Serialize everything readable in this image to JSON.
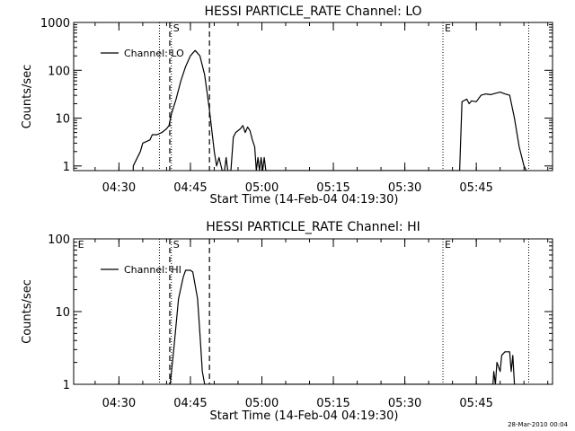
{
  "chart_data": [
    {
      "type": "line",
      "title": "HESSI PARTICLE_RATE Channel: LO",
      "xlabel": "Start Time (14-Feb-04 04:19:30)",
      "ylabel": "Counts/sec",
      "y_scale": "log",
      "xlim": [
        "04:20:30",
        "06:01:00"
      ],
      "ylim": [
        0.8,
        1000
      ],
      "x_ticks": [
        "04:30",
        "04:45",
        "05:00",
        "05:15",
        "05:30",
        "05:45"
      ],
      "y_ticks": [
        {
          "value": 1,
          "label": "1"
        },
        {
          "value": 10,
          "label": "10"
        },
        {
          "value": 100,
          "label": "100"
        },
        {
          "value": 1000,
          "label": "1000"
        }
      ],
      "legend": {
        "label": "Channel: LO",
        "position": "top-left"
      },
      "markers": [
        {
          "label": "S",
          "x": "04:41:00",
          "style": "dotted"
        },
        {
          "label": "E",
          "x": "05:38:00",
          "style": "dotted"
        }
      ],
      "bounds": [
        {
          "x": "04:38:30",
          "style": "dotted"
        },
        {
          "x": "04:40:40",
          "style": "dashed"
        },
        {
          "x": "04:49:00",
          "style": "dashed"
        },
        {
          "x": "05:56:00",
          "style": "dotted"
        }
      ],
      "series": [
        {
          "name": "Channel: LO",
          "points": [
            [
              "04:33:00",
              0.8
            ],
            [
              "04:33:00",
              1.0
            ],
            [
              "04:34:30",
              2.0
            ],
            [
              "04:35:00",
              3.0
            ],
            [
              "04:36:30",
              3.5
            ],
            [
              "04:37:00",
              4.5
            ],
            [
              "04:38:00",
              4.5
            ],
            [
              "04:39:00",
              5.0
            ],
            [
              "04:40:00",
              6.0
            ],
            [
              "04:40:30",
              7.0
            ],
            [
              "04:41:00",
              12.0
            ],
            [
              "04:42:00",
              25.0
            ],
            [
              "04:43:00",
              60.0
            ],
            [
              "04:44:00",
              120.0
            ],
            [
              "04:45:00",
              200.0
            ],
            [
              "04:46:00",
              260.0
            ],
            [
              "04:47:00",
              200.0
            ],
            [
              "04:48:00",
              80.0
            ],
            [
              "04:49:00",
              15.0
            ],
            [
              "04:50:00",
              2.0
            ],
            [
              "04:50:30",
              1.0
            ],
            [
              "04:51:00",
              1.5
            ],
            [
              "04:51:40",
              0.8
            ],
            [
              "04:52:10",
              0.8
            ],
            [
              "04:52:30",
              1.5
            ],
            [
              "04:52:50",
              0.8
            ],
            [
              "04:53:30",
              0.8
            ],
            [
              "04:54:00",
              4.0
            ],
            [
              "04:54:30",
              5.0
            ],
            [
              "04:55:30",
              6.0
            ],
            [
              "04:56:00",
              7.0
            ],
            [
              "04:56:30",
              5.0
            ],
            [
              "04:57:00",
              6.5
            ],
            [
              "04:57:30",
              5.5
            ],
            [
              "04:58:00",
              3.5
            ],
            [
              "04:58:30",
              2.5
            ],
            [
              "04:58:50",
              0.8
            ],
            [
              "04:59:10",
              1.5
            ],
            [
              "04:59:30",
              0.8
            ],
            [
              "04:59:50",
              1.5
            ],
            [
              "05:00:10",
              0.8
            ],
            [
              "05:00:30",
              1.5
            ],
            [
              "05:00:50",
              0.8
            ],
            [
              "05:41:30",
              0.8
            ],
            [
              "05:42:00",
              22.0
            ],
            [
              "05:43:00",
              25.0
            ],
            [
              "05:43:30",
              20.0
            ],
            [
              "05:44:00",
              23.0
            ],
            [
              "05:45:00",
              22.0
            ],
            [
              "05:46:00",
              30.0
            ],
            [
              "05:47:00",
              32.0
            ],
            [
              "05:48:00",
              31.0
            ],
            [
              "05:49:00",
              33.0
            ],
            [
              "05:50:00",
              35.0
            ],
            [
              "05:51:00",
              32.0
            ],
            [
              "05:52:00",
              30.0
            ],
            [
              "05:53:00",
              10.0
            ],
            [
              "05:54:00",
              2.5
            ],
            [
              "05:55:00",
              1.0
            ],
            [
              "05:55:30",
              0.8
            ]
          ]
        }
      ]
    },
    {
      "type": "line",
      "title": "HESSI PARTICLE_RATE Channel: HI",
      "xlabel": "Start Time (14-Feb-04 04:19:30)",
      "ylabel": "Counts/sec",
      "y_scale": "log",
      "xlim": [
        "04:20:30",
        "06:01:00"
      ],
      "ylim": [
        1,
        100
      ],
      "x_ticks": [
        "04:30",
        "04:45",
        "05:00",
        "05:15",
        "05:30",
        "05:45"
      ],
      "y_ticks": [
        {
          "value": 1,
          "label": "1"
        },
        {
          "value": 10,
          "label": "10"
        },
        {
          "value": 100,
          "label": "100"
        }
      ],
      "legend": {
        "label": "Channel: HI",
        "position": "top-left"
      },
      "markers": [
        {
          "label": "E",
          "x": "04:21:00",
          "style": "none"
        },
        {
          "label": "S",
          "x": "04:41:00",
          "style": "dotted"
        },
        {
          "label": "E",
          "x": "05:38:00",
          "style": "dotted"
        }
      ],
      "bounds": [
        {
          "x": "04:38:30",
          "style": "dotted"
        },
        {
          "x": "04:40:40",
          "style": "dashed"
        },
        {
          "x": "04:49:00",
          "style": "dashed"
        },
        {
          "x": "05:56:00",
          "style": "dotted"
        }
      ],
      "series": [
        {
          "name": "Channel: HI",
          "points": [
            [
              "04:40:45",
              1.0
            ],
            [
              "04:41:30",
              3.0
            ],
            [
              "04:42:30",
              15.0
            ],
            [
              "04:43:30",
              30.0
            ],
            [
              "04:44:00",
              37.0
            ],
            [
              "04:45:00",
              37.0
            ],
            [
              "04:45:30",
              35.0
            ],
            [
              "04:46:30",
              15.0
            ],
            [
              "04:47:00",
              5.0
            ],
            [
              "04:47:30",
              1.5
            ],
            [
              "04:48:00",
              1.0
            ],
            [
              "05:48:30",
              1.0
            ],
            [
              "05:48:40",
              1.5
            ],
            [
              "05:49:00",
              1.0
            ],
            [
              "05:49:20",
              2.0
            ],
            [
              "05:50:00",
              1.5
            ],
            [
              "05:50:20",
              2.5
            ],
            [
              "05:51:00",
              2.8
            ],
            [
              "05:52:00",
              2.8
            ],
            [
              "05:52:20",
              1.5
            ],
            [
              "05:52:40",
              2.5
            ],
            [
              "05:53:00",
              1.0
            ]
          ]
        }
      ]
    }
  ],
  "footer": {
    "timestamp": "28-Mar-2010 00:04"
  }
}
